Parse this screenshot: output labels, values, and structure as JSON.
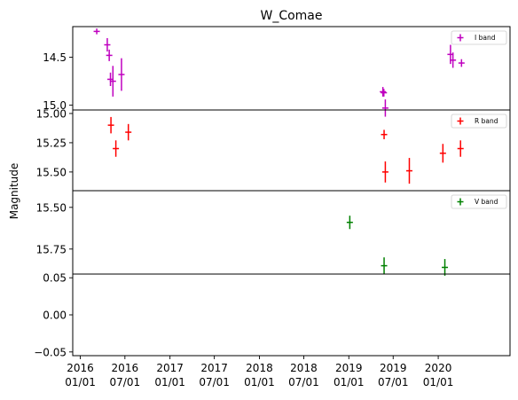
{
  "chart_data": {
    "type": "scatter",
    "title": "W_Comae",
    "ylabel": "Magnitude",
    "xlabel": "",
    "x_tick_labels": [
      "2016\n01/01",
      "2016\n07/01",
      "2017\n01/01",
      "2017\n07/01",
      "2018\n01/01",
      "2018\n07/01",
      "2019\n01/01",
      "2019\n07/01",
      "2020\n01/01"
    ],
    "panels": [
      {
        "name": "I band",
        "legend": "I band",
        "color": "#bf00bf",
        "y_inverted": true,
        "ylim": [
          15.05,
          14.18
        ],
        "yticks": [
          "14.5",
          "15.0"
        ],
        "points": [
          {
            "x": "2016-03-08",
            "y": 14.23,
            "err": 0.03
          },
          {
            "x": "2016-04-20",
            "y": 14.37,
            "err": 0.07
          },
          {
            "x": "2016-04-28",
            "y": 14.48,
            "err": 0.06
          },
          {
            "x": "2016-05-03",
            "y": 14.73,
            "err": 0.07
          },
          {
            "x": "2016-05-13",
            "y": 14.75,
            "err": 0.16
          },
          {
            "x": "2016-06-17",
            "y": 14.68,
            "err": 0.17
          },
          {
            "x": "2019-05-20",
            "y": 14.86,
            "err": 0.05
          },
          {
            "x": "2019-05-24",
            "y": 14.87,
            "err": 0.04
          },
          {
            "x": "2019-05-30",
            "y": 15.03,
            "err": 0.09
          },
          {
            "x": "2020-02-20",
            "y": 14.47,
            "err": 0.1
          },
          {
            "x": "2020-03-01",
            "y": 14.53,
            "err": 0.08
          },
          {
            "x": "2020-04-05",
            "y": 14.56,
            "err": 0.04
          }
        ]
      },
      {
        "name": "R band",
        "legend": "R band",
        "color": "#ff0000",
        "y_inverted": true,
        "ylim": [
          15.66,
          14.97
        ],
        "yticks": [
          "15.00",
          "15.25",
          "15.50"
        ],
        "points": [
          {
            "x": "2016-05-05",
            "y": 15.1,
            "err": 0.07
          },
          {
            "x": "2016-05-25",
            "y": 15.3,
            "err": 0.07
          },
          {
            "x": "2016-07-15",
            "y": 15.16,
            "err": 0.07
          },
          {
            "x": "2019-05-25",
            "y": 15.18,
            "err": 0.04
          },
          {
            "x": "2019-05-30",
            "y": 15.5,
            "err": 0.09
          },
          {
            "x": "2019-09-05",
            "y": 15.49,
            "err": 0.11
          },
          {
            "x": "2020-01-20",
            "y": 15.34,
            "err": 0.08
          },
          {
            "x": "2020-04-01",
            "y": 15.3,
            "err": 0.07
          }
        ]
      },
      {
        "name": "V band",
        "legend": "V band",
        "color": "#008000",
        "y_inverted": true,
        "ylim": [
          15.9,
          15.4
        ],
        "yticks": [
          "15.50",
          "15.75"
        ],
        "points": [
          {
            "x": "2019-01-05",
            "y": 15.59,
            "err": 0.04
          },
          {
            "x": "2019-05-25",
            "y": 15.85,
            "err": 0.05
          },
          {
            "x": "2020-01-28",
            "y": 15.86,
            "err": 0.05
          }
        ]
      },
      {
        "name": "empty",
        "legend": "",
        "color": "#000000",
        "y_inverted": false,
        "ylim": [
          -0.055,
          0.055
        ],
        "yticks": [
          "0.05",
          "0.00",
          "−0.05"
        ],
        "points": []
      }
    ],
    "legend_position": "upper right",
    "grid": false
  }
}
